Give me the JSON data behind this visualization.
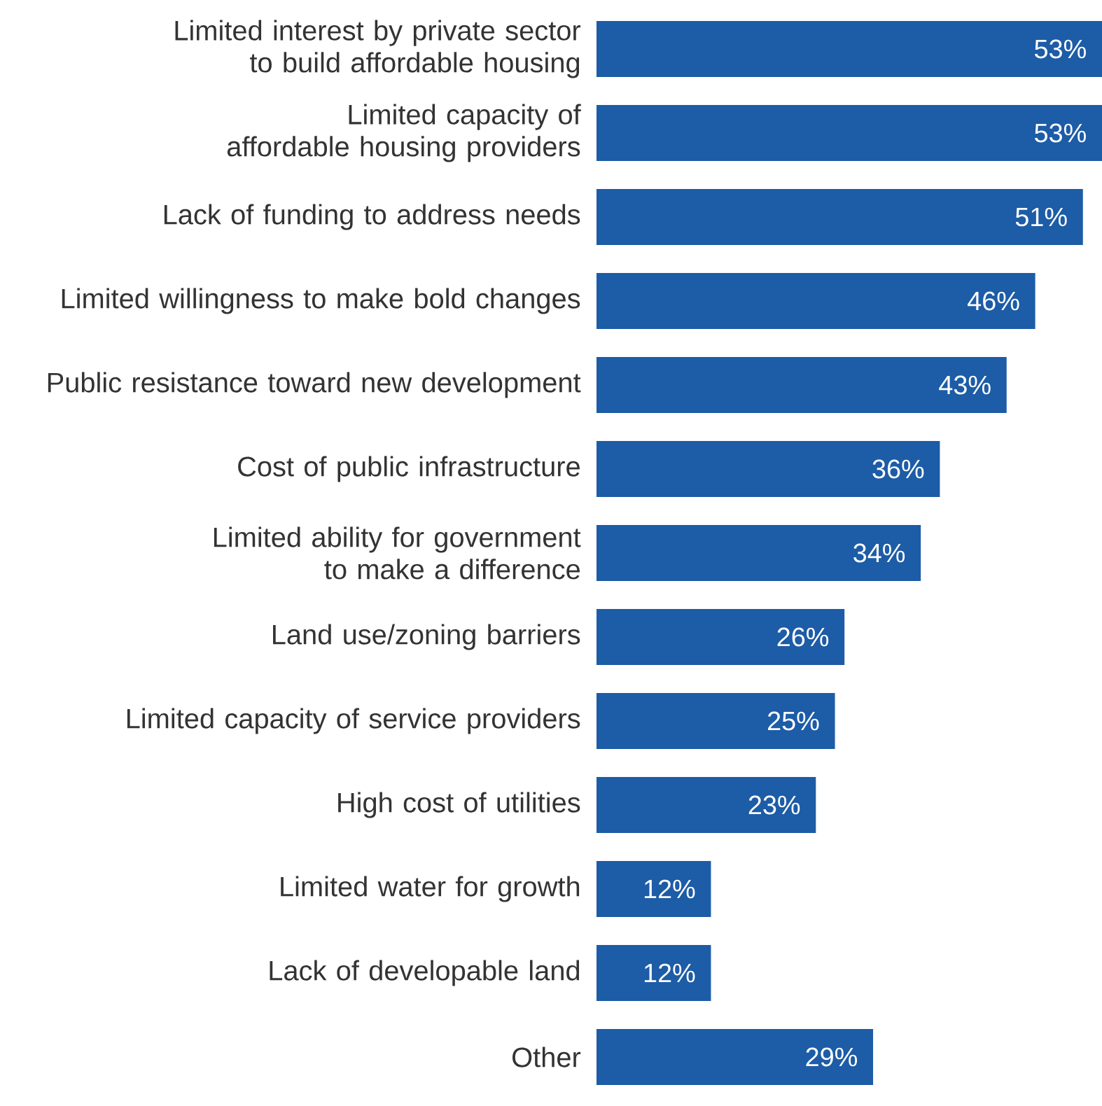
{
  "chart_data": {
    "type": "bar",
    "orientation": "horizontal",
    "color": "#1d5ca6",
    "categories": [
      "Limited interest by private sector to build affordable housing",
      "Limited capacity of affordable housing providers",
      "Lack of funding to address needs",
      "Limited willingness to make bold changes",
      "Public resistance toward new development",
      "Cost of public infrastructure",
      "Limited ability for government to make a difference",
      "Land use/zoning barriers",
      "Limited capacity of service providers",
      "High cost of utilities",
      "Limited water for growth",
      "Lack of developable land",
      "Other"
    ],
    "values": [
      53,
      53,
      51,
      46,
      43,
      36,
      34,
      26,
      25,
      23,
      12,
      12,
      29
    ],
    "value_labels": [
      "53%",
      "53%",
      "51%",
      "46%",
      "43%",
      "36%",
      "34%",
      "26%",
      "25%",
      "23%",
      "12%",
      "12%",
      "29%"
    ]
  }
}
